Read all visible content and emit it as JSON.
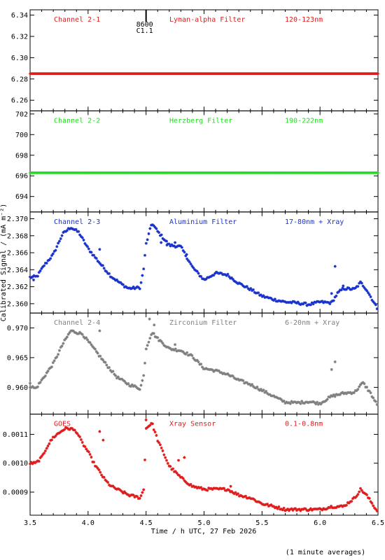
{
  "footer_note": "(1 minute averages)",
  "chart_data": {
    "type": "scatter",
    "xlabel": "Time / h UTC, 27 Feb 2026",
    "ylabel": "Calibrated Signal / (mA m⁻²)",
    "xlim": [
      3.5,
      6.5
    ],
    "x_ticks": [
      "3.5",
      "4.0",
      "4.5",
      "5.0",
      "5.5",
      "6.0",
      "6.5"
    ],
    "event_marker": {
      "x": 4.5,
      "labels": [
        "8600",
        "C1.1"
      ]
    },
    "panels": [
      {
        "name": "Channel 2-1",
        "filter": "Lyman-alpha Filter",
        "band": "120-123nm",
        "color": "#d81e1e",
        "ylim": [
          6.25,
          6.345
        ],
        "y_ticks": [
          "6.26",
          "6.28",
          "6.30",
          "6.32",
          "6.34"
        ],
        "keypoints": [
          [
            3.5,
            6.285
          ],
          [
            6.5,
            6.285
          ]
        ]
      },
      {
        "name": "Channel 2-2",
        "filter": "Herzberg Filter",
        "band": "190-222nm",
        "color": "#22dd22",
        "ylim": [
          692.5,
          702.3
        ],
        "y_ticks": [
          "694",
          "696",
          "698",
          "700",
          "702"
        ],
        "keypoints": [
          [
            3.5,
            696.3
          ],
          [
            6.5,
            696.3
          ]
        ]
      },
      {
        "name": "Channel 2-3",
        "filter": "Aluminium Filter",
        "band": "17-80nm + Xray",
        "color": "#1a33cc",
        "ylim": [
          2.3589,
          2.3708
        ],
        "y_ticks": [
          "2.360",
          "2.362",
          "2.364",
          "2.366",
          "2.368",
          "2.370"
        ],
        "keypoints": [
          [
            3.5,
            2.3631
          ],
          [
            3.56,
            2.3632
          ],
          [
            3.62,
            2.3645
          ],
          [
            3.7,
            2.3658
          ],
          [
            3.78,
            2.3682
          ],
          [
            3.85,
            2.369
          ],
          [
            3.92,
            2.3684
          ],
          [
            4.0,
            2.3665
          ],
          [
            4.1,
            2.3648
          ],
          [
            4.2,
            2.3632
          ],
          [
            4.3,
            2.3622
          ],
          [
            4.35,
            2.3618
          ],
          [
            4.45,
            2.3619
          ],
          [
            4.48,
            2.3642
          ],
          [
            4.5,
            2.367
          ],
          [
            4.55,
            2.3695
          ],
          [
            4.6,
            2.3685
          ],
          [
            4.7,
            2.3669
          ],
          [
            4.8,
            2.3667
          ],
          [
            4.9,
            2.3643
          ],
          [
            5.0,
            2.3628
          ],
          [
            5.1,
            2.3636
          ],
          [
            5.2,
            2.3634
          ],
          [
            5.3,
            2.3624
          ],
          [
            5.4,
            2.3617
          ],
          [
            5.5,
            2.3609
          ],
          [
            5.6,
            2.3605
          ],
          [
            5.7,
            2.3602
          ],
          [
            5.8,
            2.3601
          ],
          [
            5.9,
            2.3599
          ],
          [
            6.0,
            2.3602
          ],
          [
            6.1,
            2.3601
          ],
          [
            6.15,
            2.3612
          ],
          [
            6.2,
            2.3618
          ],
          [
            6.3,
            2.3617
          ],
          [
            6.35,
            2.3625
          ],
          [
            6.4,
            2.3617
          ],
          [
            6.5,
            2.3593
          ]
        ],
        "scatter": [
          [
            3.53,
            2.3628
          ],
          [
            4.1,
            2.3664
          ],
          [
            4.63,
            2.3672
          ],
          [
            4.68,
            2.3669
          ],
          [
            4.75,
            2.3672
          ],
          [
            4.85,
            2.3658
          ],
          [
            6.13,
            2.3644
          ],
          [
            6.1,
            2.3612
          ],
          [
            6.2,
            2.3621
          ]
        ]
      },
      {
        "name": "Channel 2-4",
        "filter": "Zirconium Filter",
        "band": "6-20nm + Xray",
        "color": "#808080",
        "ylim": [
          0.9555,
          0.9725
        ],
        "y_ticks": [
          "0.960",
          "0.965",
          "0.970"
        ],
        "keypoints": [
          [
            3.5,
            0.9602
          ],
          [
            3.55,
            0.9598
          ],
          [
            3.6,
            0.9612
          ],
          [
            3.7,
            0.964
          ],
          [
            3.78,
            0.9672
          ],
          [
            3.85,
            0.9695
          ],
          [
            3.95,
            0.969
          ],
          [
            4.05,
            0.9665
          ],
          [
            4.15,
            0.964
          ],
          [
            4.25,
            0.9617
          ],
          [
            4.35,
            0.9605
          ],
          [
            4.45,
            0.9598
          ],
          [
            4.48,
            0.962
          ],
          [
            4.5,
            0.9665
          ],
          [
            4.55,
            0.9693
          ],
          [
            4.6,
            0.9682
          ],
          [
            4.7,
            0.9665
          ],
          [
            4.8,
            0.9662
          ],
          [
            4.9,
            0.9652
          ],
          [
            5.0,
            0.9632
          ],
          [
            5.1,
            0.9628
          ],
          [
            5.2,
            0.9622
          ],
          [
            5.3,
            0.9612
          ],
          [
            5.4,
            0.9605
          ],
          [
            5.5,
            0.9595
          ],
          [
            5.6,
            0.9585
          ],
          [
            5.7,
            0.9575
          ],
          [
            5.8,
            0.9574
          ],
          [
            5.9,
            0.9576
          ],
          [
            6.0,
            0.9573
          ],
          [
            6.1,
            0.9585
          ],
          [
            6.2,
            0.959
          ],
          [
            6.3,
            0.9592
          ],
          [
            6.37,
            0.9608
          ],
          [
            6.43,
            0.9592
          ],
          [
            6.5,
            0.9568
          ]
        ],
        "scatter": [
          [
            3.5,
            0.9607
          ],
          [
            4.1,
            0.9695
          ],
          [
            4.53,
            0.9715
          ],
          [
            4.57,
            0.9705
          ],
          [
            4.75,
            0.9672
          ],
          [
            6.1,
            0.963
          ],
          [
            6.13,
            0.9643
          ]
        ]
      },
      {
        "name": "GOES",
        "filter": "Xray Sensor",
        "band": "0.1-0.8nm",
        "color": "#e01c1c",
        "ylim": [
          0.00082,
          0.00117
        ],
        "y_ticks": [
          "0.0009",
          "0.0010",
          "0.0011"
        ],
        "keypoints": [
          [
            3.5,
            0.001
          ],
          [
            3.55,
            0.001
          ],
          [
            3.6,
            0.00102
          ],
          [
            3.65,
            0.00106
          ],
          [
            3.7,
            0.00109
          ],
          [
            3.8,
            0.00112
          ],
          [
            3.85,
            0.00112
          ],
          [
            3.9,
            0.00111
          ],
          [
            3.95,
            0.00107
          ],
          [
            4.0,
            0.00104
          ],
          [
            4.05,
            0.001
          ],
          [
            4.1,
            0.00097
          ],
          [
            4.15,
            0.00094
          ],
          [
            4.2,
            0.00092
          ],
          [
            4.3,
            0.0009
          ],
          [
            4.35,
            0.00089
          ],
          [
            4.45,
            0.00088
          ],
          [
            4.48,
            0.00091
          ],
          [
            4.5,
            0.00112
          ],
          [
            4.55,
            0.00114
          ],
          [
            4.6,
            0.00108
          ],
          [
            4.7,
            0.00099
          ],
          [
            4.8,
            0.00095
          ],
          [
            4.9,
            0.00092
          ],
          [
            5.0,
            0.00091
          ],
          [
            5.1,
            0.00091
          ],
          [
            5.2,
            0.00091
          ],
          [
            5.3,
            0.00089
          ],
          [
            5.4,
            0.00088
          ],
          [
            5.5,
            0.00086
          ],
          [
            5.6,
            0.00085
          ],
          [
            5.7,
            0.00084
          ],
          [
            5.8,
            0.00084
          ],
          [
            5.9,
            0.00084
          ],
          [
            6.0,
            0.00084
          ],
          [
            6.1,
            0.00085
          ],
          [
            6.2,
            0.00085
          ],
          [
            6.3,
            0.00088
          ],
          [
            6.35,
            0.00091
          ],
          [
            6.4,
            0.00089
          ],
          [
            6.5,
            0.00083
          ]
        ],
        "scatter": [
          [
            4.1,
            0.00111
          ],
          [
            4.13,
            0.00108
          ],
          [
            4.5,
            0.00115
          ],
          [
            4.78,
            0.00101
          ],
          [
            4.83,
            0.00102
          ],
          [
            5.23,
            0.00092
          ]
        ]
      }
    ]
  }
}
